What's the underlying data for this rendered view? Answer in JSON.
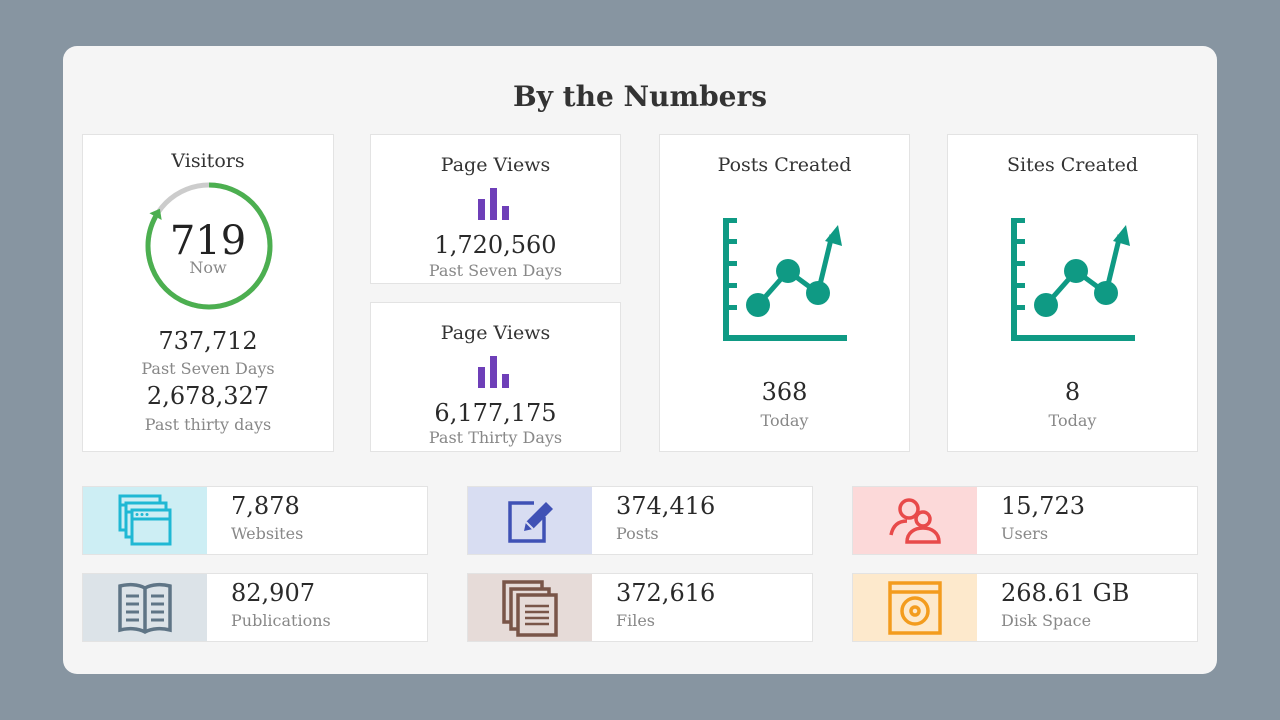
{
  "title": "By the Numbers",
  "visitors": {
    "label": "Visitors",
    "now_value": "719",
    "now_label": "Now",
    "ring_fill": 0.83,
    "seven_days_value": "737,712",
    "seven_days_label": "Past Seven Days",
    "thirty_days_value": "2,678,327",
    "thirty_days_label": "Past thirty days"
  },
  "page_views_7": {
    "label": "Page Views",
    "value": "1,720,560",
    "period": "Past Seven Days"
  },
  "page_views_30": {
    "label": "Page Views",
    "value": "6,177,175",
    "period": "Past Thirty Days"
  },
  "posts_created": {
    "label": "Posts Created",
    "value": "368",
    "period": "Today"
  },
  "sites_created": {
    "label": "Sites Created",
    "value": "8",
    "period": "Today"
  },
  "stats": {
    "websites": {
      "value": "7,878",
      "label": "Websites",
      "icon": "browser-windows-icon",
      "icon_color": "#1fb8d4",
      "bg": "#cdeef4"
    },
    "posts": {
      "value": "374,416",
      "label": "Posts",
      "icon": "edit-icon",
      "icon_color": "#3f51b5",
      "bg": "#d8ddf2"
    },
    "users": {
      "value": "15,723",
      "label": "Users",
      "icon": "users-icon",
      "icon_color": "#e84a4a",
      "bg": "#fcd9d9"
    },
    "publications": {
      "value": "82,907",
      "label": "Publications",
      "icon": "open-book-icon",
      "icon_color": "#5f7586",
      "bg": "#dce3e8"
    },
    "files": {
      "value": "372,616",
      "label": "Files",
      "icon": "files-icon",
      "icon_color": "#795548",
      "bg": "#e6dbd8"
    },
    "disk_space": {
      "value": "268.61 GB",
      "label": "Disk Space",
      "icon": "disk-icon",
      "icon_color": "#f39c1e",
      "bg": "#fde9cc"
    }
  },
  "colors": {
    "ring": "#4caf50",
    "ring_track": "#cccccc",
    "bar_icon": "#6e3fb8",
    "line_chart_icon": "#0f9a84"
  }
}
